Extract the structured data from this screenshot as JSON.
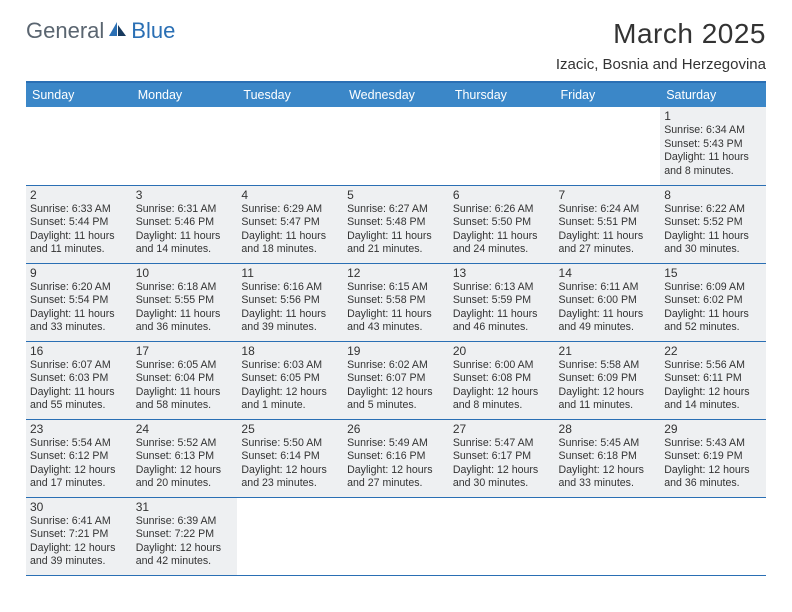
{
  "colors": {
    "header_bg": "#3b87c8",
    "rule": "#2a6fb4",
    "shade": "#eef0f2",
    "text": "#333333",
    "logo_gray": "#5a6570",
    "logo_blue": "#2a6fb4"
  },
  "logo": {
    "text1": "General",
    "text2": "Blue"
  },
  "title": "March 2025",
  "location": "Izacic, Bosnia and Herzegovina",
  "weekdays": [
    "Sunday",
    "Monday",
    "Tuesday",
    "Wednesday",
    "Thursday",
    "Friday",
    "Saturday"
  ],
  "weeks": [
    [
      null,
      null,
      null,
      null,
      null,
      null,
      {
        "n": "1",
        "sr": "Sunrise: 6:34 AM",
        "ss": "Sunset: 5:43 PM",
        "d1": "Daylight: 11 hours",
        "d2": "and 8 minutes."
      }
    ],
    [
      {
        "n": "2",
        "sr": "Sunrise: 6:33 AM",
        "ss": "Sunset: 5:44 PM",
        "d1": "Daylight: 11 hours",
        "d2": "and 11 minutes."
      },
      {
        "n": "3",
        "sr": "Sunrise: 6:31 AM",
        "ss": "Sunset: 5:46 PM",
        "d1": "Daylight: 11 hours",
        "d2": "and 14 minutes."
      },
      {
        "n": "4",
        "sr": "Sunrise: 6:29 AM",
        "ss": "Sunset: 5:47 PM",
        "d1": "Daylight: 11 hours",
        "d2": "and 18 minutes."
      },
      {
        "n": "5",
        "sr": "Sunrise: 6:27 AM",
        "ss": "Sunset: 5:48 PM",
        "d1": "Daylight: 11 hours",
        "d2": "and 21 minutes."
      },
      {
        "n": "6",
        "sr": "Sunrise: 6:26 AM",
        "ss": "Sunset: 5:50 PM",
        "d1": "Daylight: 11 hours",
        "d2": "and 24 minutes."
      },
      {
        "n": "7",
        "sr": "Sunrise: 6:24 AM",
        "ss": "Sunset: 5:51 PM",
        "d1": "Daylight: 11 hours",
        "d2": "and 27 minutes."
      },
      {
        "n": "8",
        "sr": "Sunrise: 6:22 AM",
        "ss": "Sunset: 5:52 PM",
        "d1": "Daylight: 11 hours",
        "d2": "and 30 minutes."
      }
    ],
    [
      {
        "n": "9",
        "sr": "Sunrise: 6:20 AM",
        "ss": "Sunset: 5:54 PM",
        "d1": "Daylight: 11 hours",
        "d2": "and 33 minutes."
      },
      {
        "n": "10",
        "sr": "Sunrise: 6:18 AM",
        "ss": "Sunset: 5:55 PM",
        "d1": "Daylight: 11 hours",
        "d2": "and 36 minutes."
      },
      {
        "n": "11",
        "sr": "Sunrise: 6:16 AM",
        "ss": "Sunset: 5:56 PM",
        "d1": "Daylight: 11 hours",
        "d2": "and 39 minutes."
      },
      {
        "n": "12",
        "sr": "Sunrise: 6:15 AM",
        "ss": "Sunset: 5:58 PM",
        "d1": "Daylight: 11 hours",
        "d2": "and 43 minutes."
      },
      {
        "n": "13",
        "sr": "Sunrise: 6:13 AM",
        "ss": "Sunset: 5:59 PM",
        "d1": "Daylight: 11 hours",
        "d2": "and 46 minutes."
      },
      {
        "n": "14",
        "sr": "Sunrise: 6:11 AM",
        "ss": "Sunset: 6:00 PM",
        "d1": "Daylight: 11 hours",
        "d2": "and 49 minutes."
      },
      {
        "n": "15",
        "sr": "Sunrise: 6:09 AM",
        "ss": "Sunset: 6:02 PM",
        "d1": "Daylight: 11 hours",
        "d2": "and 52 minutes."
      }
    ],
    [
      {
        "n": "16",
        "sr": "Sunrise: 6:07 AM",
        "ss": "Sunset: 6:03 PM",
        "d1": "Daylight: 11 hours",
        "d2": "and 55 minutes."
      },
      {
        "n": "17",
        "sr": "Sunrise: 6:05 AM",
        "ss": "Sunset: 6:04 PM",
        "d1": "Daylight: 11 hours",
        "d2": "and 58 minutes."
      },
      {
        "n": "18",
        "sr": "Sunrise: 6:03 AM",
        "ss": "Sunset: 6:05 PM",
        "d1": "Daylight: 12 hours",
        "d2": "and 1 minute."
      },
      {
        "n": "19",
        "sr": "Sunrise: 6:02 AM",
        "ss": "Sunset: 6:07 PM",
        "d1": "Daylight: 12 hours",
        "d2": "and 5 minutes."
      },
      {
        "n": "20",
        "sr": "Sunrise: 6:00 AM",
        "ss": "Sunset: 6:08 PM",
        "d1": "Daylight: 12 hours",
        "d2": "and 8 minutes."
      },
      {
        "n": "21",
        "sr": "Sunrise: 5:58 AM",
        "ss": "Sunset: 6:09 PM",
        "d1": "Daylight: 12 hours",
        "d2": "and 11 minutes."
      },
      {
        "n": "22",
        "sr": "Sunrise: 5:56 AM",
        "ss": "Sunset: 6:11 PM",
        "d1": "Daylight: 12 hours",
        "d2": "and 14 minutes."
      }
    ],
    [
      {
        "n": "23",
        "sr": "Sunrise: 5:54 AM",
        "ss": "Sunset: 6:12 PM",
        "d1": "Daylight: 12 hours",
        "d2": "and 17 minutes."
      },
      {
        "n": "24",
        "sr": "Sunrise: 5:52 AM",
        "ss": "Sunset: 6:13 PM",
        "d1": "Daylight: 12 hours",
        "d2": "and 20 minutes."
      },
      {
        "n": "25",
        "sr": "Sunrise: 5:50 AM",
        "ss": "Sunset: 6:14 PM",
        "d1": "Daylight: 12 hours",
        "d2": "and 23 minutes."
      },
      {
        "n": "26",
        "sr": "Sunrise: 5:49 AM",
        "ss": "Sunset: 6:16 PM",
        "d1": "Daylight: 12 hours",
        "d2": "and 27 minutes."
      },
      {
        "n": "27",
        "sr": "Sunrise: 5:47 AM",
        "ss": "Sunset: 6:17 PM",
        "d1": "Daylight: 12 hours",
        "d2": "and 30 minutes."
      },
      {
        "n": "28",
        "sr": "Sunrise: 5:45 AM",
        "ss": "Sunset: 6:18 PM",
        "d1": "Daylight: 12 hours",
        "d2": "and 33 minutes."
      },
      {
        "n": "29",
        "sr": "Sunrise: 5:43 AM",
        "ss": "Sunset: 6:19 PM",
        "d1": "Daylight: 12 hours",
        "d2": "and 36 minutes."
      }
    ],
    [
      {
        "n": "30",
        "sr": "Sunrise: 6:41 AM",
        "ss": "Sunset: 7:21 PM",
        "d1": "Daylight: 12 hours",
        "d2": "and 39 minutes."
      },
      {
        "n": "31",
        "sr": "Sunrise: 6:39 AM",
        "ss": "Sunset: 7:22 PM",
        "d1": "Daylight: 12 hours",
        "d2": "and 42 minutes."
      },
      null,
      null,
      null,
      null,
      null
    ]
  ]
}
